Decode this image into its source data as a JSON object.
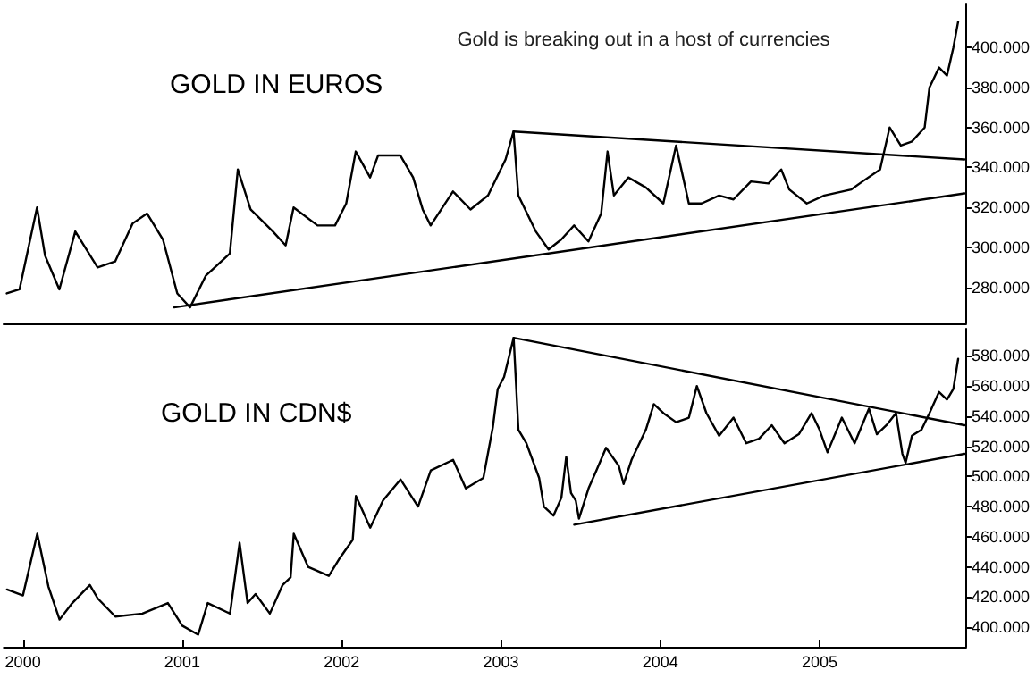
{
  "chart_data": [
    {
      "type": "line",
      "title": "Gold is breaking out in a host of currencies",
      "annotations": [
        "GOLD IN EUROS"
      ],
      "xlim": [
        1999.88,
        2005.92
      ],
      "xticks": [
        2000,
        2001,
        2002,
        2003,
        2004,
        2005
      ],
      "tick_labels": "y",
      "ylim": [
        262,
        422
      ],
      "yticks": [
        {
          "value": 280,
          "label": "280.000"
        },
        {
          "value": 300,
          "label": "300.000"
        },
        {
          "value": 320,
          "label": "320.000"
        },
        {
          "value": 340,
          "label": "340.000"
        },
        {
          "value": 360,
          "label": "360.000"
        },
        {
          "value": 380,
          "label": "380.000"
        },
        {
          "value": 400,
          "label": "400.000"
        }
      ],
      "marker": "none",
      "line_style": "solid",
      "series": [
        {
          "color": "#000000",
          "x": [
            1999.9,
            1999.98,
            2000.09,
            2000.14,
            2000.23,
            2000.33,
            2000.47,
            2000.58,
            2000.69,
            2000.78,
            2000.88,
            2000.97,
            2001.05,
            2001.15,
            2001.3,
            2001.35,
            2001.43,
            2001.57,
            2001.65,
            2001.7,
            2001.85,
            2001.96,
            2002.03,
            2002.09,
            2002.18,
            2002.23,
            2002.37,
            2002.45,
            2002.51,
            2002.56,
            2002.7,
            2002.81,
            2002.92,
            2003.03,
            2003.08,
            2003.11,
            2003.22,
            2003.3,
            2003.38,
            2003.46,
            2003.55,
            2003.63,
            2003.67,
            2003.71,
            2003.8,
            2003.91,
            2004.02,
            2004.1,
            2004.18,
            2004.26,
            2004.37,
            2004.46,
            2004.57,
            2004.68,
            2004.76,
            2004.81,
            2004.92,
            2005.03,
            2005.2,
            2005.27,
            2005.38,
            2005.44,
            2005.51,
            2005.58,
            2005.66,
            2005.69,
            2005.75,
            2005.8,
            2005.84,
            2005.87
          ],
          "values": [
            277,
            279,
            320,
            296,
            279,
            308,
            290,
            293,
            312,
            317,
            304,
            277,
            270,
            286,
            297,
            339,
            319,
            308,
            301,
            320,
            311,
            311,
            322,
            348,
            335,
            346,
            346,
            335,
            319,
            311,
            328,
            319,
            326,
            344,
            358,
            326,
            308,
            299,
            304,
            311,
            303,
            317,
            348,
            326,
            335,
            330,
            322,
            351,
            322,
            322,
            326,
            324,
            333,
            332,
            339,
            329,
            322,
            326,
            329,
            333,
            339,
            360,
            351,
            353,
            360,
            380,
            390,
            386,
            400,
            413
          ]
        },
        {
          "type": "line",
          "color": "#000000",
          "x": [
            2000.95,
            2005.91
          ],
          "values": [
            270,
            327
          ]
        },
        {
          "type": "line",
          "color": "#000000",
          "x": [
            2003.08,
            2005.91
          ],
          "values": [
            358,
            344
          ]
        }
      ]
    },
    {
      "type": "line",
      "annotations": [
        "GOLD IN CDN$"
      ],
      "xlim": [
        1999.88,
        2005.92
      ],
      "xticks": [
        2000,
        2001,
        2002,
        2003,
        2004,
        2005
      ],
      "ylim": [
        387,
        598
      ],
      "yticks": [
        {
          "value": 400,
          "label": "400.000"
        },
        {
          "value": 420,
          "label": "420.000"
        },
        {
          "value": 440,
          "label": "440.000"
        },
        {
          "value": 460,
          "label": "460.000"
        },
        {
          "value": 480,
          "label": "480.000"
        },
        {
          "value": 500,
          "label": "500.000"
        },
        {
          "value": 520,
          "label": "520.000"
        },
        {
          "value": 540,
          "label": "540.000"
        },
        {
          "value": 560,
          "label": "560.000"
        },
        {
          "value": 580,
          "label": "580.000"
        }
      ],
      "marker": "none",
      "line_style": "solid",
      "series": [
        {
          "color": "#000000",
          "x": [
            1999.9,
            2000.0,
            2000.09,
            2000.16,
            2000.23,
            2000.31,
            2000.42,
            2000.47,
            2000.58,
            2000.75,
            2000.91,
            2001.0,
            2001.1,
            2001.16,
            2001.3,
            2001.36,
            2001.41,
            2001.46,
            2001.55,
            2001.63,
            2001.68,
            2001.7,
            2001.79,
            2001.92,
            2001.99,
            2002.07,
            2002.09,
            2002.18,
            2002.26,
            2002.37,
            2002.48,
            2002.56,
            2002.7,
            2002.78,
            2002.89,
            2002.95,
            2002.98,
            2003.02,
            2003.08,
            2003.11,
            2003.16,
            2003.24,
            2003.27,
            2003.33,
            2003.38,
            2003.41,
            2003.44,
            2003.47,
            2003.49,
            2003.55,
            2003.6,
            2003.66,
            2003.74,
            2003.77,
            2003.82,
            2003.91,
            2003.96,
            2004.02,
            2004.1,
            2004.18,
            2004.23,
            2004.29,
            2004.37,
            2004.46,
            2004.54,
            2004.62,
            2004.7,
            2004.78,
            2004.87,
            2004.95,
            2005.0,
            2005.05,
            2005.14,
            2005.22,
            2005.31,
            2005.36,
            2005.42,
            2005.48,
            2005.52,
            2005.54,
            2005.58,
            2005.64,
            2005.69,
            2005.75,
            2005.8,
            2005.84,
            2005.87
          ],
          "values": [
            425,
            421,
            462,
            427,
            405,
            416,
            428,
            419,
            407,
            409,
            416,
            401,
            395,
            416,
            409,
            456,
            416,
            422,
            409,
            428,
            433,
            462,
            440,
            434,
            446,
            458,
            487,
            466,
            484,
            498,
            480,
            504,
            511,
            492,
            499,
            533,
            558,
            566,
            592,
            531,
            522,
            499,
            480,
            474,
            486,
            513,
            489,
            484,
            472,
            492,
            504,
            519,
            507,
            495,
            511,
            531,
            548,
            542,
            536,
            539,
            560,
            542,
            527,
            539,
            522,
            525,
            534,
            522,
            528,
            542,
            531,
            516,
            539,
            522,
            545,
            528,
            534,
            542,
            515,
            509,
            527,
            531,
            542,
            556,
            551,
            558,
            578
          ]
        },
        {
          "type": "line",
          "color": "#000000",
          "x": [
            2003.08,
            2005.91
          ],
          "values": [
            592,
            534
          ]
        },
        {
          "type": "line",
          "color": "#000000",
          "x": [
            2003.46,
            2005.91
          ],
          "values": [
            468,
            515
          ]
        }
      ]
    }
  ]
}
